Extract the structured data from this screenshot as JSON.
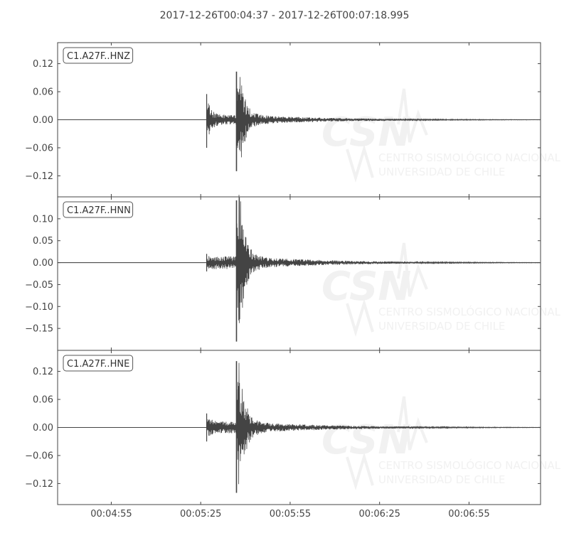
{
  "title": "2017-12-26T00:04:37  -  2017-12-26T00:07:18.995",
  "watermark": {
    "logo": "CSN",
    "line1": "CENTRO SISMOLÓGICO NACIONAL",
    "line2": "UNIVERSIDAD DE CHILE"
  },
  "colors": {
    "trace": "#444444",
    "axes": "#444444",
    "background": "#ffffff"
  },
  "chart_data": {
    "type": "line",
    "x_range": [
      "00:04:37",
      "00:07:18.995"
    ],
    "x_ticks": [
      "00:04:55",
      "00:05:25",
      "00:05:55",
      "00:06:25",
      "00:06:55"
    ],
    "p_arrival": "00:05:27",
    "s_arrival": "00:05:37",
    "grid": false,
    "panels": [
      {
        "channel": "C1.A27F..HNZ",
        "ylim": [
          -0.165,
          0.165
        ],
        "yticks": [
          "0.12",
          "0.06",
          "0.00",
          "−0.06",
          "−0.12"
        ],
        "ytick_values": [
          0.12,
          0.06,
          0.0,
          -0.06,
          -0.12
        ],
        "p_peak": 0.055,
        "p_trough": -0.06,
        "s_peak": 0.103,
        "s_trough": -0.11,
        "coda_level": 0.012
      },
      {
        "channel": "C1.A27F..HNN",
        "ylim": [
          -0.2,
          0.15
        ],
        "yticks": [
          "0.10",
          "0.05",
          "0.00",
          "−0.05",
          "−0.10",
          "−0.15"
        ],
        "ytick_values": [
          0.1,
          0.05,
          0.0,
          -0.05,
          -0.1,
          -0.15
        ],
        "p_peak": 0.02,
        "p_trough": -0.02,
        "s_peak": 0.142,
        "s_trough": -0.18,
        "coda_level": 0.016
      },
      {
        "channel": "C1.A27F..HNE",
        "ylim": [
          -0.165,
          0.165
        ],
        "yticks": [
          "0.12",
          "0.06",
          "0.00",
          "−0.06",
          "−0.12"
        ],
        "ytick_values": [
          0.12,
          0.06,
          0.0,
          -0.06,
          -0.12
        ],
        "p_peak": 0.03,
        "p_trough": -0.03,
        "s_peak": 0.142,
        "s_trough": -0.14,
        "coda_level": 0.014
      }
    ]
  }
}
